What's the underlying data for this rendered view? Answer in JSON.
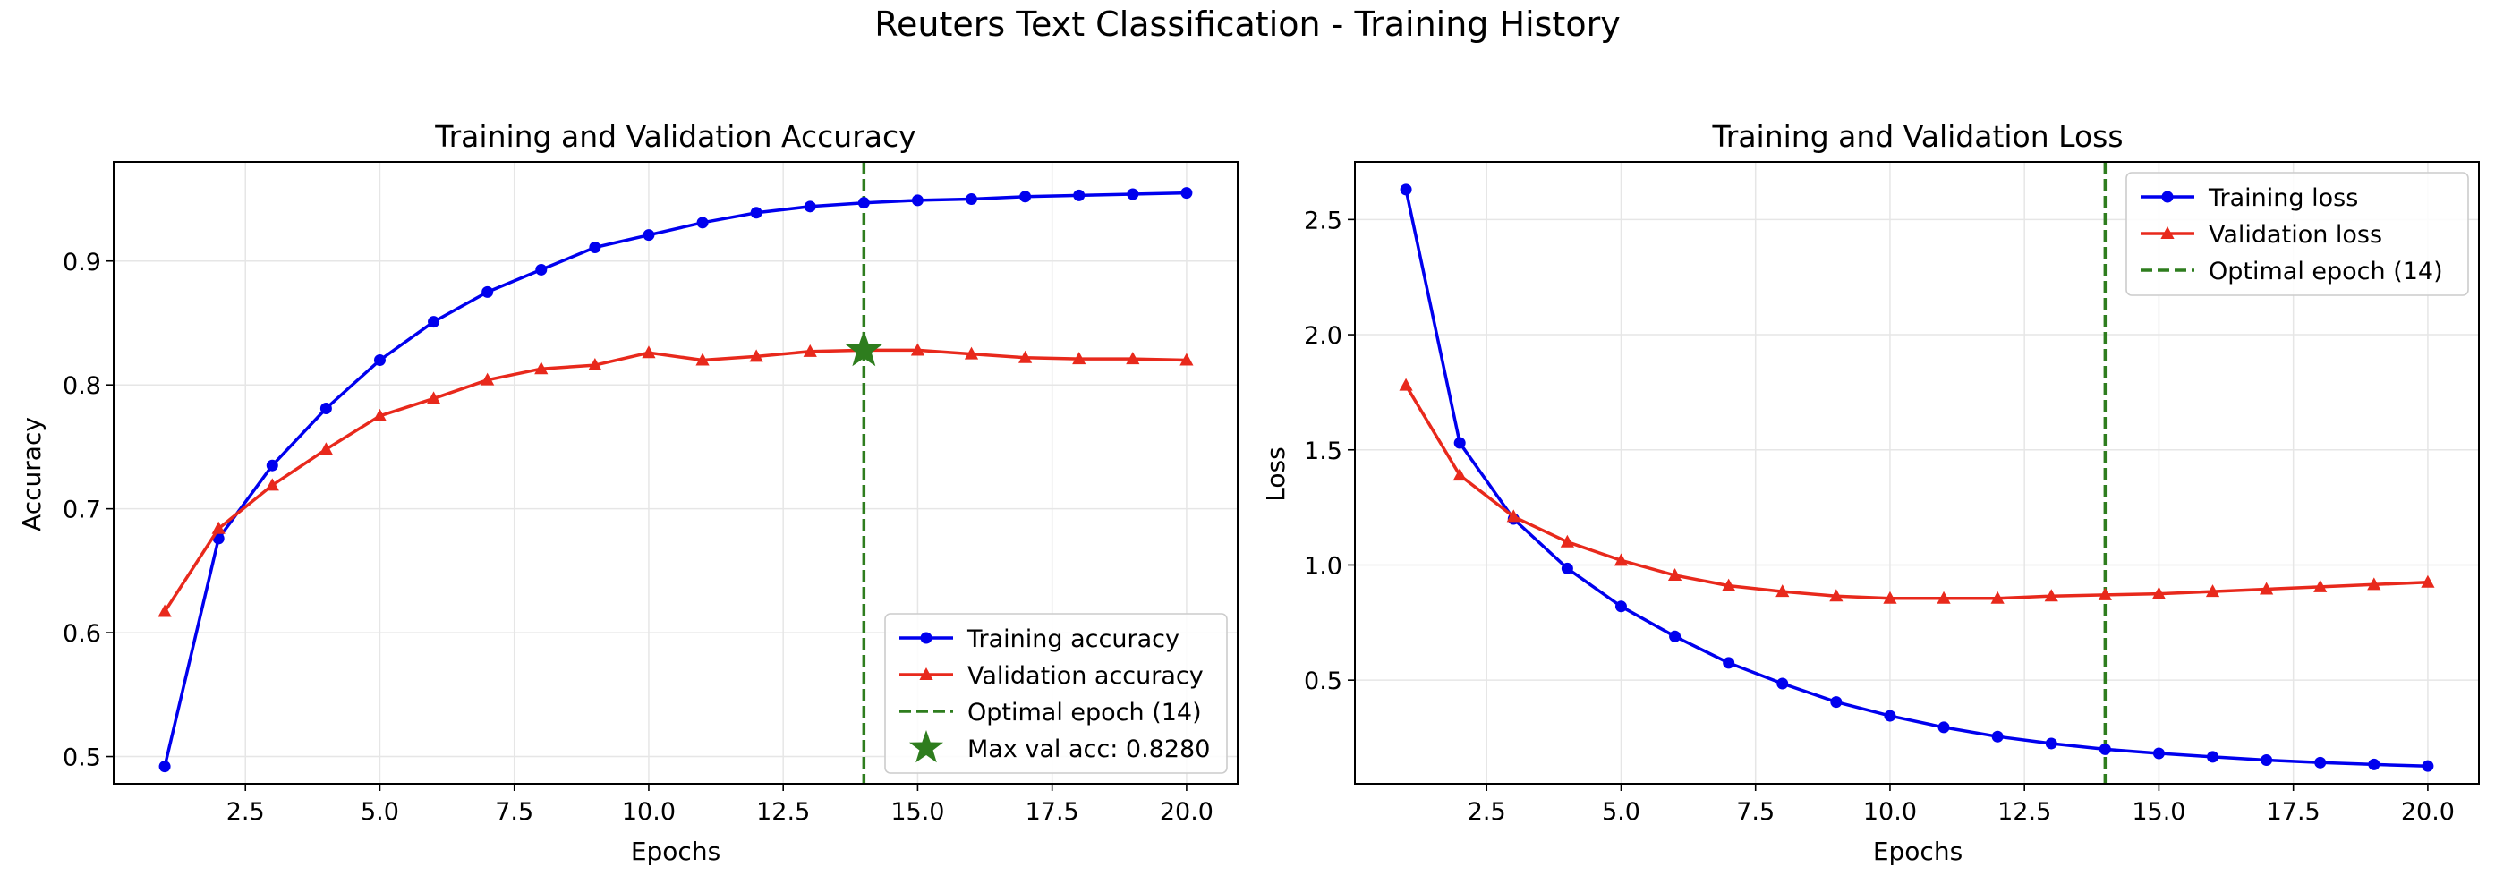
{
  "suptitle": "Reuters Text Classification - Training History",
  "colors": {
    "training": "#0000ee",
    "validation": "#e8291c",
    "optimal": "#2e7d1e",
    "grid": "#e6e6e6"
  },
  "chart_data": [
    {
      "type": "line",
      "title": "Training and Validation Accuracy",
      "xlabel": "Epochs",
      "ylabel": "Accuracy",
      "xlim": [
        0.05,
        20.95
      ],
      "ylim": [
        0.478,
        0.98
      ],
      "xticks": [
        "2.5",
        "5.0",
        "7.5",
        "10.0",
        "12.5",
        "15.0",
        "17.5",
        "20.0"
      ],
      "yticks": [
        "0.5",
        "0.6",
        "0.7",
        "0.8",
        "0.9"
      ],
      "grid": true,
      "legend_position": "lower-right",
      "x": [
        1,
        2,
        3,
        4,
        5,
        6,
        7,
        8,
        9,
        10,
        11,
        12,
        13,
        14,
        15,
        16,
        17,
        18,
        19,
        20
      ],
      "series": [
        {
          "name": "Training accuracy",
          "marker": "circle",
          "color": "#0000ee",
          "values": [
            0.492,
            0.676,
            0.735,
            0.781,
            0.82,
            0.851,
            0.875,
            0.893,
            0.911,
            0.921,
            0.931,
            0.939,
            0.944,
            0.947,
            0.949,
            0.95,
            0.952,
            0.953,
            0.954,
            0.955
          ]
        },
        {
          "name": "Validation accuracy",
          "marker": "triangle",
          "color": "#e8291c",
          "values": [
            0.617,
            0.684,
            0.719,
            0.748,
            0.775,
            0.789,
            0.804,
            0.813,
            0.816,
            0.826,
            0.82,
            0.823,
            0.827,
            0.828,
            0.828,
            0.825,
            0.822,
            0.821,
            0.821,
            0.82
          ]
        }
      ],
      "optimal_epoch": {
        "x": 14,
        "label": "Optimal epoch (14)"
      },
      "max_point": {
        "x": 14,
        "y": 0.828,
        "label": "Max val acc: 0.8280"
      }
    },
    {
      "type": "line",
      "title": "Training and Validation Loss",
      "xlabel": "Epochs",
      "ylabel": "Loss",
      "xlim": [
        0.05,
        20.95
      ],
      "ylim": [
        0.05,
        2.75
      ],
      "xticks": [
        "2.5",
        "5.0",
        "7.5",
        "10.0",
        "12.5",
        "15.0",
        "17.5",
        "20.0"
      ],
      "yticks": [
        "0.5",
        "1.0",
        "1.5",
        "2.0",
        "2.5"
      ],
      "grid": true,
      "legend_position": "upper-right",
      "x": [
        1,
        2,
        3,
        4,
        5,
        6,
        7,
        8,
        9,
        10,
        11,
        12,
        13,
        14,
        15,
        16,
        17,
        18,
        19,
        20
      ],
      "series": [
        {
          "name": "Training loss",
          "marker": "circle",
          "color": "#0000ee",
          "values": [
            2.63,
            1.53,
            1.2,
            0.985,
            0.82,
            0.69,
            0.575,
            0.485,
            0.405,
            0.345,
            0.295,
            0.255,
            0.225,
            0.2,
            0.182,
            0.167,
            0.153,
            0.142,
            0.134,
            0.127
          ]
        },
        {
          "name": "Validation loss",
          "marker": "triangle",
          "color": "#e8291c",
          "values": [
            1.78,
            1.39,
            1.21,
            1.1,
            1.02,
            0.955,
            0.91,
            0.885,
            0.865,
            0.855,
            0.855,
            0.855,
            0.865,
            0.87,
            0.875,
            0.885,
            0.895,
            0.905,
            0.915,
            0.925
          ]
        }
      ],
      "optimal_epoch": {
        "x": 14,
        "label": "Optimal epoch (14)"
      }
    }
  ]
}
